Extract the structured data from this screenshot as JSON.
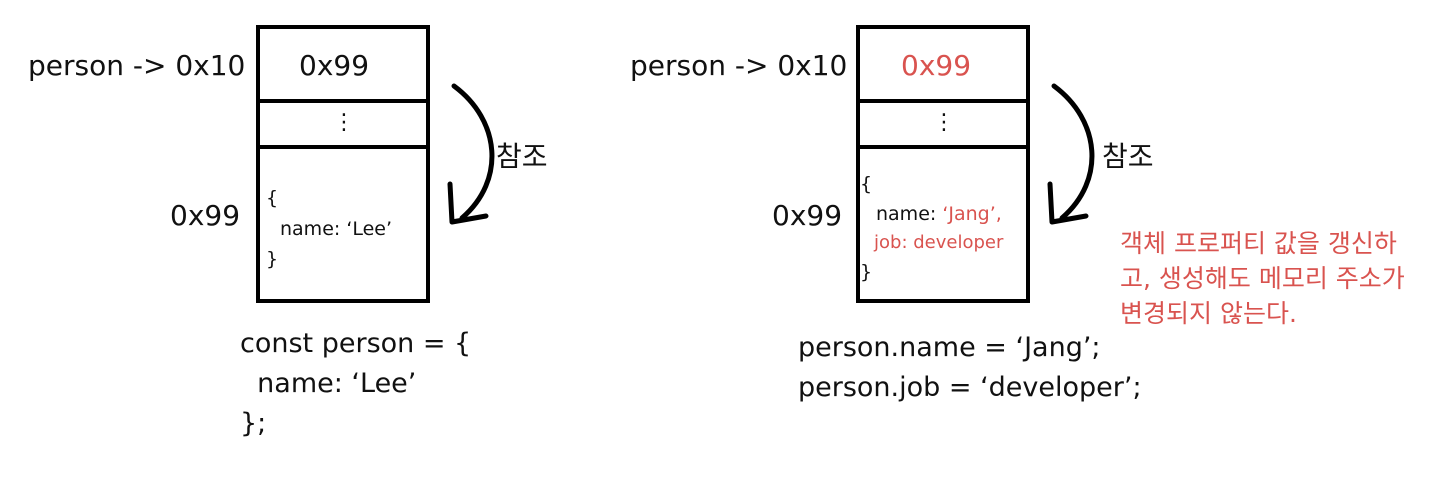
{
  "panels": [
    {
      "pointer_label": "person -> 0x10",
      "cell_value": "0x99",
      "ellipsis": "⋮",
      "object_address": "0x99",
      "object_lines": [
        "{",
        "name: ‘Lee’",
        "}"
      ],
      "reference_label": "참조",
      "code_lines": [
        "const person = {",
        "  name: ‘Lee’",
        "};"
      ]
    },
    {
      "pointer_label": "person -> 0x10",
      "cell_value": "0x99",
      "ellipsis": "⋮",
      "object_address": "0x99",
      "object_lines": [
        "{",
        "name: ",
        "‘Jang’,",
        "job: developer",
        "}"
      ],
      "reference_label": "참조",
      "code_lines": [
        "person.name = ‘Jang’;",
        "person.job = ‘developer’;"
      ]
    }
  ],
  "note_lines": [
    "객체 프로퍼티 값을 갱신하",
    "고, 생성해도 메모리 주소가",
    "변경되지 않는다."
  ],
  "colors": {
    "accent_red": "#d9534f",
    "stroke": "#000000"
  }
}
